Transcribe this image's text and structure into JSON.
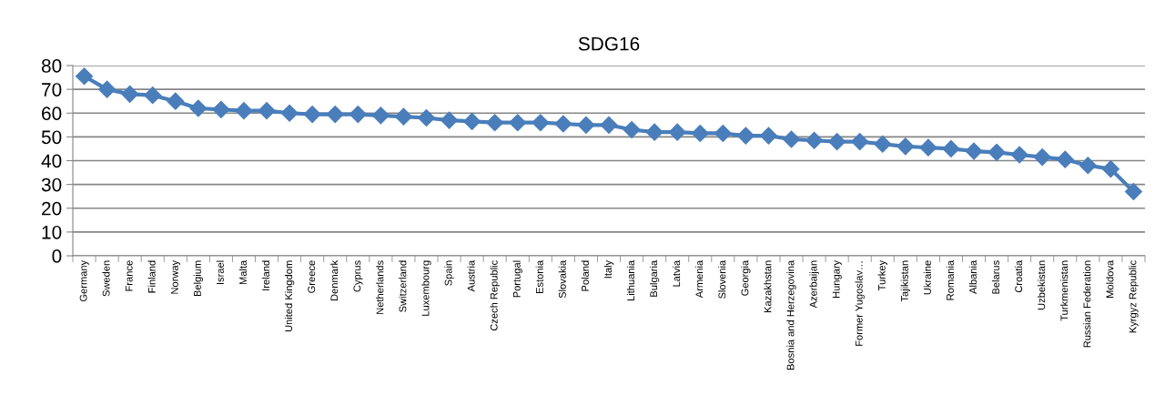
{
  "chart_data": {
    "type": "line",
    "title": "SDG16",
    "categories": [
      "Germany",
      "Sweden",
      "France",
      "Finland",
      "Norway",
      "Belgium",
      "Israel",
      "Malta",
      "Ireland",
      "United Kingdom",
      "Greece",
      "Denmark",
      "Cyprus",
      "Netherlands",
      "Switzerland",
      "Luxembourg",
      "Spain",
      "Austria",
      "Czech Republic",
      "Portugal",
      "Estonia",
      "Slovakia",
      "Poland",
      "Italy",
      "Lithuania",
      "Bulgaria",
      "Latvia",
      "Armenia",
      "Slovenia",
      "Georgia",
      "Kazakhstan",
      "Bosnia and Herzegovina",
      "Azerbaijan",
      "Hungary",
      "Former Yugoslav…",
      "Turkey",
      "Tajikistan",
      "Ukraine",
      "Romania",
      "Albania",
      "Belarus",
      "Croatia",
      "Uzbekistan",
      "Turkmenistan",
      "Russian Federation",
      "Moldova",
      "Kyrgyz Republic"
    ],
    "series": [
      {
        "color": "#4a7ebb",
        "values": [
          75.5,
          70,
          68,
          67.5,
          65,
          62,
          61.5,
          61,
          61,
          60,
          59.5,
          59.5,
          59.5,
          59,
          58.5,
          58,
          57,
          56.5,
          56,
          56,
          56,
          55.5,
          55,
          55,
          53,
          52,
          52,
          51.5,
          51.5,
          50.5,
          50.5,
          49,
          48.5,
          48,
          48,
          47,
          46,
          45.5,
          45,
          44,
          43.5,
          42.5,
          41.5,
          40.5,
          38,
          36.5,
          27
        ]
      }
    ],
    "ylim": [
      0,
      80
    ],
    "yticks": [
      0,
      10,
      20,
      30,
      40,
      50,
      60,
      70,
      80
    ],
    "grid": "y",
    "marker": "diamond",
    "line_style": "solid"
  }
}
